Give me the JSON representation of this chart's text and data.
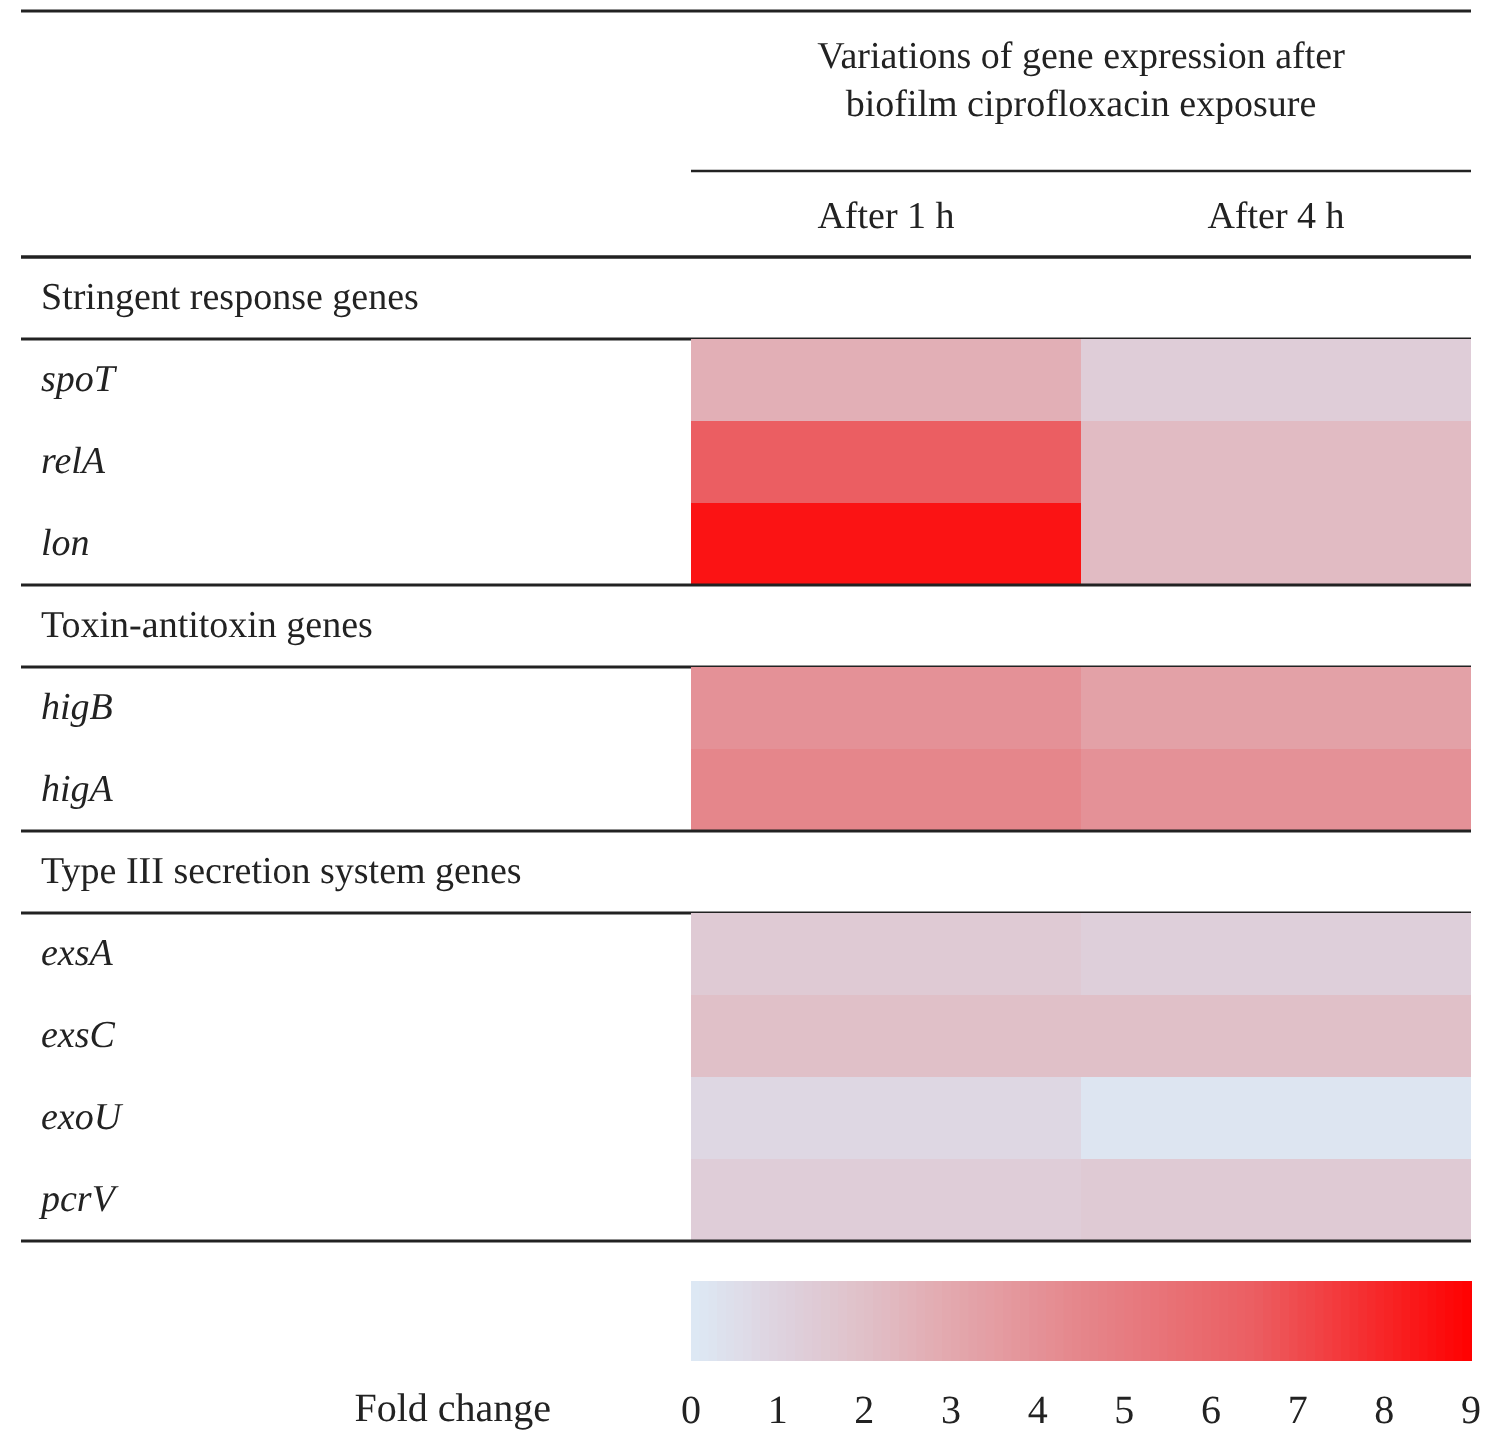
{
  "chart_data": {
    "type": "heatmap",
    "title": "Variations of gene expression after biofilm ciprofloxacin exposure",
    "categories": [
      "After 1 h",
      "After 4 h"
    ],
    "y_categories": [
      "Stringent response genes",
      "spoT",
      "relA",
      "lon",
      "Toxin-antitoxin genes",
      "higB",
      "higA",
      "Type III secretion system genes",
      "exsA",
      "exsC",
      "exoU",
      "pcrV"
    ],
    "cells": [
      [
        null,
        null
      ],
      [
        2.7,
        1.3
      ],
      [
        6.5,
        2.2
      ],
      [
        8.5,
        2.2
      ],
      [
        null,
        null
      ],
      [
        4.0,
        3.3
      ],
      [
        4.5,
        4.0
      ],
      [
        null,
        null
      ],
      [
        1.5,
        1.2
      ],
      [
        2.0,
        2.0
      ],
      [
        0.8,
        0.2
      ],
      [
        1.3,
        1.5
      ]
    ],
    "clabel": "Fold change",
    "clim": [
      0,
      9
    ],
    "cticks": [
      0,
      1,
      2,
      3,
      4,
      5,
      6,
      7,
      8,
      9
    ]
  }
}
